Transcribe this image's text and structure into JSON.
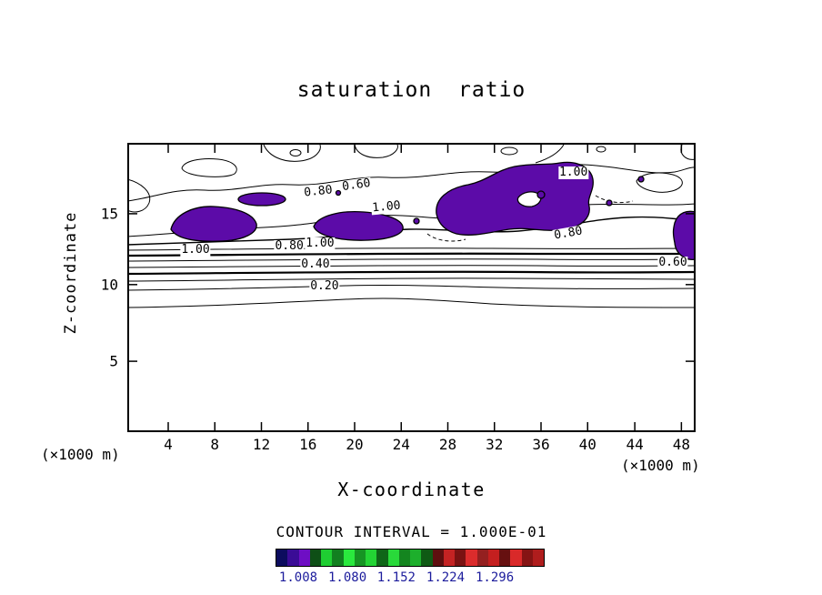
{
  "chart": {
    "title": "saturation ratio",
    "xlabel": "X-coordinate",
    "ylabel": "Z-coordinate",
    "x_units": "(×1000 m)",
    "y_units": "(×1000 m)",
    "contour_interval": "CONTOUR INTERVAL = 1.000E-01"
  },
  "chart_data": {
    "type": "contour",
    "title": "saturation ratio",
    "xlabel": "X-coordinate",
    "ylabel": "Z-coordinate",
    "contour_interval": "1.000E-01",
    "contour_interval_label": "CONTOUR INTERVAL = 1.000E-01",
    "line_color": "#000000",
    "fill_color": "#5c0ba8",
    "x_axis": {
      "label": "X-coordinate",
      "units": "(×1000 m)",
      "range": [
        0,
        50
      ],
      "ticks": [
        {
          "v": 4,
          "f": 0.072
        },
        {
          "v": 8,
          "f": 0.154
        },
        {
          "v": 12,
          "f": 0.236
        },
        {
          "v": 16,
          "f": 0.318
        },
        {
          "v": 20,
          "f": 0.4
        },
        {
          "v": 24,
          "f": 0.482
        },
        {
          "v": 28,
          "f": 0.564
        },
        {
          "v": 32,
          "f": 0.646
        },
        {
          "v": 36,
          "f": 0.728
        },
        {
          "v": 40,
          "f": 0.81
        },
        {
          "v": 44,
          "f": 0.893
        },
        {
          "v": 48,
          "f": 0.975
        }
      ]
    },
    "y_axis": {
      "label": "Z-coordinate",
      "units": "(×1000 m)",
      "range": [
        0,
        20
      ],
      "ticks": [
        {
          "v": 15,
          "f": 0.245
        },
        {
          "v": 10,
          "f": 0.49
        },
        {
          "v": 5,
          "f": 0.755
        }
      ]
    },
    "contour_labels": [
      {
        "text": "0.80",
        "x": 33.6,
        "y": 17.0,
        "rot": -6
      },
      {
        "text": "0.60",
        "x": 40.3,
        "y": 14.8,
        "rot": -8
      },
      {
        "text": "1.00",
        "x": 45.6,
        "y": 22.3,
        "rot": -5
      },
      {
        "text": "1.00",
        "x": 78.5,
        "y": 10.4,
        "rot": 0
      },
      {
        "text": "0.80",
        "x": 77.6,
        "y": 31.4,
        "rot": -10
      },
      {
        "text": "1.00",
        "x": 12.0,
        "y": 37.1,
        "rot": 0
      },
      {
        "text": "0.80",
        "x": 28.5,
        "y": 35.8,
        "rot": 0
      },
      {
        "text": "1.00",
        "x": 33.9,
        "y": 34.9,
        "rot": 0
      },
      {
        "text": "0.40",
        "x": 33.1,
        "y": 42.1,
        "rot": 0
      },
      {
        "text": "0.20",
        "x": 34.7,
        "y": 49.7,
        "rot": 0
      },
      {
        "text": "0.60",
        "x": 96.0,
        "y": 41.5,
        "rot": 0
      }
    ],
    "colorbar": {
      "label_color": "#1c1c9c",
      "labels": [
        {
          "text": "1.008",
          "f": 0.085
        },
        {
          "text": "1.080",
          "f": 0.269
        },
        {
          "text": "1.152",
          "f": 0.452
        },
        {
          "text": "1.224",
          "f": 0.636
        },
        {
          "text": "1.296",
          "f": 0.82
        }
      ],
      "colors": [
        "#0c0c5e",
        "#3a0c96",
        "#6e0ec4",
        "#0e4f16",
        "#1fce32",
        "#128020",
        "#2ae93e",
        "#169423",
        "#23d434",
        "#0f6618",
        "#29d93a",
        "#14851f",
        "#1daf2c",
        "#0f5a14",
        "#5e0f0f",
        "#c42323",
        "#7a1212",
        "#db2c2c",
        "#942020",
        "#c41f1f",
        "#661010",
        "#d92929",
        "#851414",
        "#af1d1d"
      ]
    }
  }
}
